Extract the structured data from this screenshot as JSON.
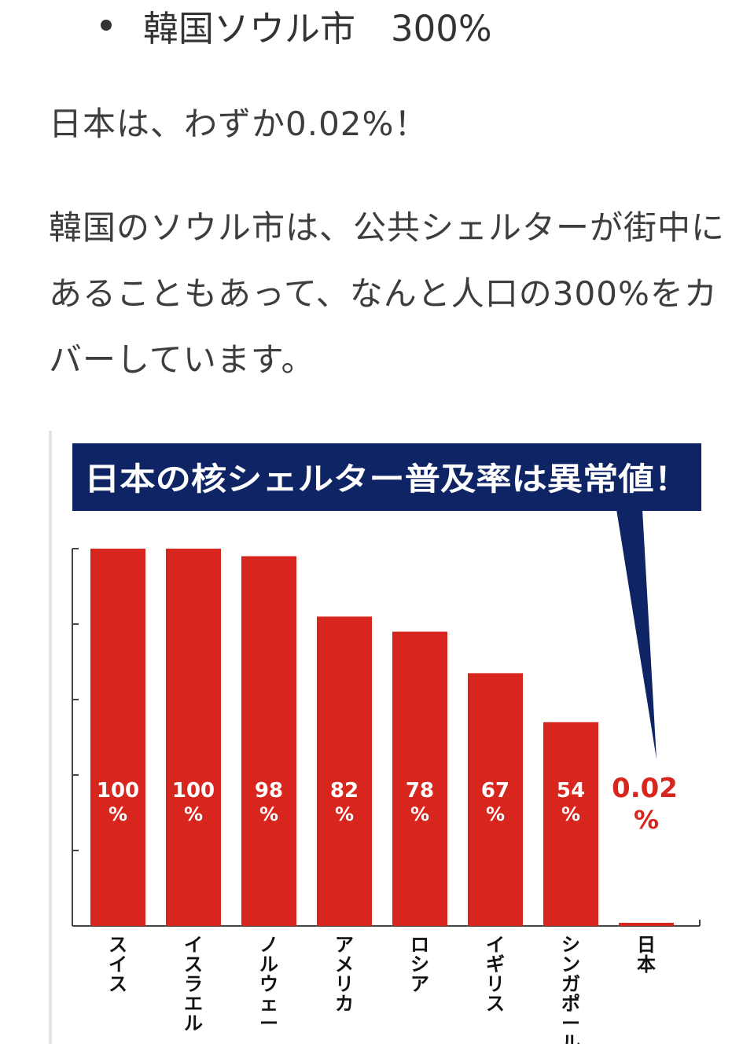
{
  "text": {
    "bullet": "韓国ソウル市　300%",
    "paragraph1": "日本は、わずか0.02%！",
    "paragraph2": "韓国のソウル市は、公共シェルターが街中にあることもあって、なんと人口の300%をカバーしています。"
  },
  "chart_data": {
    "type": "bar",
    "title": "日本の核シェルター普及率は異常値！",
    "categories": [
      "スイス",
      "イスラエル",
      "ノルウェー",
      "アメリカ",
      "ロシア",
      "イギリス",
      "シンガポール",
      "日本"
    ],
    "values": [
      100,
      100,
      98,
      82,
      78,
      67,
      54,
      0.02
    ],
    "value_labels": [
      "100",
      "100",
      "98",
      "82",
      "78",
      "67",
      "54",
      "0.02"
    ],
    "unit": "%",
    "ylim": [
      0,
      100
    ],
    "grid": false,
    "colors": {
      "bar": "#d7261e",
      "title_bg": "#0e2464",
      "title_text": "#ffffff",
      "highlight_label": "#d7261e",
      "inbar_label": "#ffffff"
    }
  }
}
